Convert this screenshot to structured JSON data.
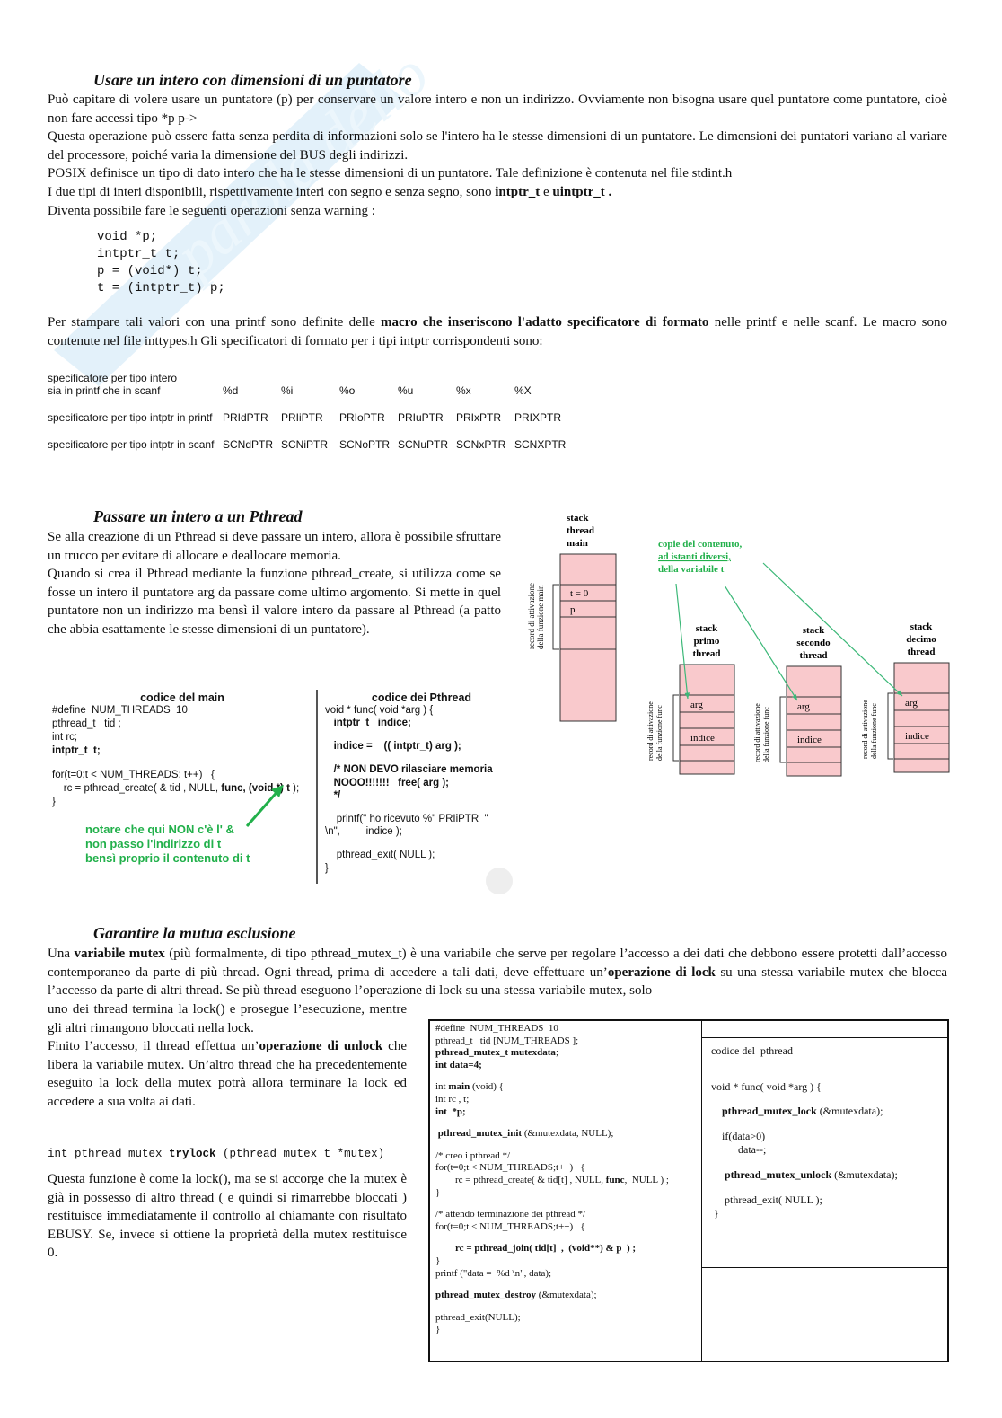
{
  "section1": {
    "heading": "Usare un intero con dimensioni di un puntatore",
    "para1": [
      [
        {
          "t": "Può capitare di volere usare un puntatore (p) per conservare un valore intero e non un indirizzo. Ovviamente non bisogna usare quel puntatore come puntatore, cioè non fare accessi tipo *p p->"
        }
      ],
      [
        {
          "t": "Questa operazione può essere fatta senza perdita di informazioni solo se l'intero ha le stesse dimensioni di un puntatore. Le dimensioni dei puntatori variano al variare del processore, poiché varia la dimensione del BUS degli indirizzi."
        }
      ],
      [
        {
          "t": "POSIX definisce un tipo di dato intero che ha le stesse dimensioni di un puntatore. Tale definizione è contenuta nel file stdint.h"
        }
      ],
      [
        {
          "t": "I due tipi di interi disponibili, rispettivamente interi con segno e senza segno, sono "
        },
        {
          "t": "intptr_t",
          "b": true
        },
        {
          "t": " e "
        },
        {
          "t": "uintptr_t .",
          "b": true
        }
      ],
      [
        {
          "t": "Diventa possibile fare le seguenti operazioni senza warning :"
        }
      ]
    ],
    "code": [
      [
        {
          "t": "void *p;"
        }
      ],
      [
        {
          "t": "intptr_t t;"
        }
      ],
      [
        {
          "t": "p = (void*) t;"
        }
      ],
      [
        {
          "t": "t = (intptr_t) p;"
        }
      ]
    ],
    "para2": [
      [
        {
          "t": "Per stampare tali valori con una printf sono definite delle "
        },
        {
          "t": "macro che inseriscono l'adatto specificatore di formato",
          "b": true
        },
        {
          "t": " nelle printf e nelle scanf. Le macro sono contenute nel file inttypes.h Gli specificatori di formato per i tipi intptr corrispondenti sono:"
        }
      ]
    ],
    "table": {
      "rows": [
        {
          "label": "specificatore per tipo intero\nsia in printf che in scanf",
          "cells": [
            "%d",
            "%i",
            "%o",
            "%u",
            "%x",
            "%X"
          ]
        },
        {
          "label": "specificatore per tipo intptr in printf",
          "cells": [
            "PRIdPTR",
            "PRIiPTR",
            "PRIoPTR",
            "PRIuPTR",
            "PRIxPTR",
            "PRIXPTR"
          ]
        },
        {
          "label": "specificatore per tipo intptr in scanf",
          "cells": [
            "SCNdPTR",
            "SCNiPTR",
            "SCNoPTR",
            "SCNuPTR",
            "SCNxPTR",
            "SCNXPTR"
          ]
        }
      ]
    }
  },
  "section2": {
    "heading": "Passare un intero a un Pthread",
    "para": [
      [
        {
          "t": "Se alla creazione di un Pthread si deve passare un intero, allora è possibile sfruttare un trucco per evitare di allocare e deallocare memoria."
        }
      ],
      [
        {
          "t": "Quando si crea il Pthread mediante la funzione pthread_create, si utilizza come se fosse un intero il puntatore arg da passare come ultimo argomento. Si mette in quel puntatore non un indirizzo ma bensì il valore intero da passare al Pthread (a patto che abbia esattamente le stesse dimensioni di un puntatore)."
        }
      ]
    ],
    "diagram": {
      "main_stack_title": [
        "stack",
        "thread",
        "main"
      ],
      "main_cells": [
        "t = 0",
        "p"
      ],
      "main_record_label": [
        "record di attivazione",
        "della funzione main"
      ],
      "note": [
        "copie del contenuto,",
        "ad istanti diversi,",
        "della variabile t"
      ],
      "threads": [
        {
          "title": [
            "stack",
            "primo",
            "thread"
          ]
        },
        {
          "title": [
            "stack",
            "secondo",
            "thread"
          ]
        },
        {
          "title": [
            "stack",
            "decimo",
            "thread"
          ]
        }
      ],
      "thread_cells": [
        "arg",
        "indice"
      ],
      "thread_record_label": [
        "record di attivazione",
        "della funzione func"
      ],
      "stack_color": "#f9c9cc",
      "arrow_color": "#3cb878"
    },
    "main_code": {
      "title": "codice del  main",
      "lines": [
        [
          {
            "t": "#define  NUM_THREADS  10"
          }
        ],
        [
          {
            "t": "pthread_t   tid ;"
          }
        ],
        [
          {
            "t": "int rc;"
          }
        ],
        [
          {
            "t": "intptr_t  t;",
            "b": true
          }
        ],
        [
          {
            "t": ""
          }
        ],
        [
          {
            "t": "for(t=0;t < NUM_THREADS; t++)   {"
          }
        ],
        [
          {
            "t": "    rc = pthread_create( & tid , NULL, "
          },
          {
            "t": "func, (void *) t",
            "b": true
          },
          {
            "t": " );"
          }
        ],
        [
          {
            "t": "}"
          }
        ]
      ],
      "note": [
        "notare che qui NON c'è  l'  &",
        "non passo l'indirizzo di t",
        "bensì proprio il contenuto di t"
      ]
    },
    "thread_code": {
      "title": "codice dei  Pthread",
      "lines": [
        [
          {
            "t": "void * func( void *arg ) {"
          }
        ],
        [
          {
            "t": "   intptr_t   indice;",
            "b": true
          }
        ],
        [
          {
            "t": ""
          }
        ],
        [
          {
            "t": "   indice =    (( intptr_t) arg );",
            "b": true
          }
        ],
        [
          {
            "t": ""
          }
        ],
        [
          {
            "t": "   /* NON DEVO rilasciare memoria",
            "b": true
          }
        ],
        [
          {
            "t": "   NOOO!!!!!!!   free( arg );",
            "b": true
          }
        ],
        [
          {
            "t": "   */",
            "b": true
          }
        ],
        [
          {
            "t": ""
          }
        ],
        [
          {
            "t": "    printf(\" ho ricevuto %\" PRIiPTR  \""
          }
        ],
        [
          {
            "t": "\\n\",         indice );"
          }
        ],
        [
          {
            "t": ""
          }
        ],
        [
          {
            "t": "    pthread_exit( NULL );"
          }
        ],
        [
          {
            "t": "}"
          }
        ]
      ]
    }
  },
  "section3": {
    "heading": "Garantire la mutua esclusione",
    "para_full": [
      [
        {
          "t": "Una "
        },
        {
          "t": "variabile mutex",
          "b": true
        },
        {
          "t": " (più formalmente, di tipo pthread_mutex_t) è una variabile che serve per regolare l’accesso a dei dati che debbono essere protetti dall’accesso contemporaneo da parte di più thread. Ogni thread, prima di accedere a tali dati, deve effettuare un’"
        },
        {
          "t": "operazione di lock",
          "b": true
        },
        {
          "t": " su una stessa variabile mutex che blocca l’accesso da parte di altri thread. Se più thread eseguono l’operazione di lock su una stessa variabile mutex, solo"
        }
      ]
    ],
    "para_narrow": [
      [
        {
          "t": "uno dei thread termina la lock() e prosegue l’esecuzione, mentre gli altri rimangono bloccati nella lock."
        }
      ],
      [
        {
          "t": "Finito l’accesso, il thread effettua un’"
        },
        {
          "t": "operazione di unlock",
          "b": true
        },
        {
          "t": " che libera la variabile mutex. Un’altro thread che ha precedentemente eseguito la lock della mutex potrà allora terminare la lock ed accedere a sua volta ai dati."
        }
      ]
    ],
    "trylock": [
      {
        "t": "int pthread_mutex_"
      },
      {
        "t": "trylock",
        "b": true
      },
      {
        "t": " (pthread_mutex_t *mutex)"
      }
    ],
    "para_trylock": [
      [
        {
          "t": "Questa funzione è come la lock(), ma se si accorge che la mutex è già in possesso di altro thread ( e quindi si rimarrebbe bloccati ) restituisce immediatamente il controllo al chiamante con risultato EBUSY. Se, invece si ottiene la proprietà della mutex restituisce 0."
        }
      ]
    ],
    "left_code": [
      [
        {
          "t": "#define  NUM_THREADS  10"
        }
      ],
      [
        {
          "t": "pthread_t   tid [NUM_THREADS ];"
        }
      ],
      [
        {
          "t": "pthread_mutex_t mutexdata",
          "b": true
        },
        {
          "t": ";"
        }
      ],
      [
        {
          "t": "int data=4;",
          "b": true
        }
      ],
      [
        {
          "t": ""
        }
      ],
      [
        {
          "t": "int "
        },
        {
          "t": "main",
          "b": true
        },
        {
          "t": " (void) {"
        }
      ],
      [
        {
          "t": "int rc , t;"
        }
      ],
      [
        {
          "t": "int  *p;",
          "b": true
        }
      ],
      [
        {
          "t": ""
        }
      ],
      [
        {
          "t": " pthread_mutex_init",
          "b": true
        },
        {
          "t": " (&mutexdata, NULL);"
        }
      ],
      [
        {
          "t": ""
        }
      ],
      [
        {
          "t": "/* creo i pthread */"
        }
      ],
      [
        {
          "t": "for(t=0;t < NUM_THREADS;t++)   {"
        }
      ],
      [
        {
          "t": "        rc = pthread_create( & tid[t] , NULL, "
        },
        {
          "t": "func",
          "b": true
        },
        {
          "t": ",  NULL ) ;"
        }
      ],
      [
        {
          "t": "}"
        }
      ],
      [
        {
          "t": ""
        }
      ],
      [
        {
          "t": "/* attendo terminazione dei pthread */"
        }
      ],
      [
        {
          "t": "for(t=0;t < NUM_THREADS;t++)   {"
        }
      ],
      [
        {
          "t": ""
        }
      ],
      [
        {
          "t": "        rc = pthread_join( tid[t]  ,  (void**) & p  ) ;",
          "b": true
        }
      ],
      [
        {
          "t": "}"
        }
      ],
      [
        {
          "t": "printf (\"data =  %d \\n\", data);"
        }
      ],
      [
        {
          "t": ""
        }
      ],
      [
        {
          "t": "pthread_mutex_destroy",
          "b": true
        },
        {
          "t": " (&mutexdata);"
        }
      ],
      [
        {
          "t": ""
        }
      ],
      [
        {
          "t": "pthread_exit(NULL);"
        }
      ],
      [
        {
          "t": "}"
        }
      ]
    ],
    "right_code": [
      [
        {
          "t": "codice del  pthread"
        }
      ],
      [
        {
          "t": ""
        }
      ],
      [
        {
          "t": ""
        }
      ],
      [
        {
          "t": "void * func( void *arg ) {"
        }
      ],
      [
        {
          "t": ""
        }
      ],
      [
        {
          "t": "    pthread_mutex_lock",
          "b": true
        },
        {
          "t": " (&mutexdata);"
        }
      ],
      [
        {
          "t": ""
        }
      ],
      [
        {
          "t": "    if(data>0)"
        }
      ],
      [
        {
          "t": "          data--;"
        }
      ],
      [
        {
          "t": ""
        }
      ],
      [
        {
          "t": "     pthread_mutex_unlock",
          "b": true
        },
        {
          "t": " (&mutexdata);"
        }
      ],
      [
        {
          "t": ""
        }
      ],
      [
        {
          "t": "     pthread_exit( NULL );"
        }
      ],
      [
        {
          "t": " }"
        }
      ]
    ]
  }
}
